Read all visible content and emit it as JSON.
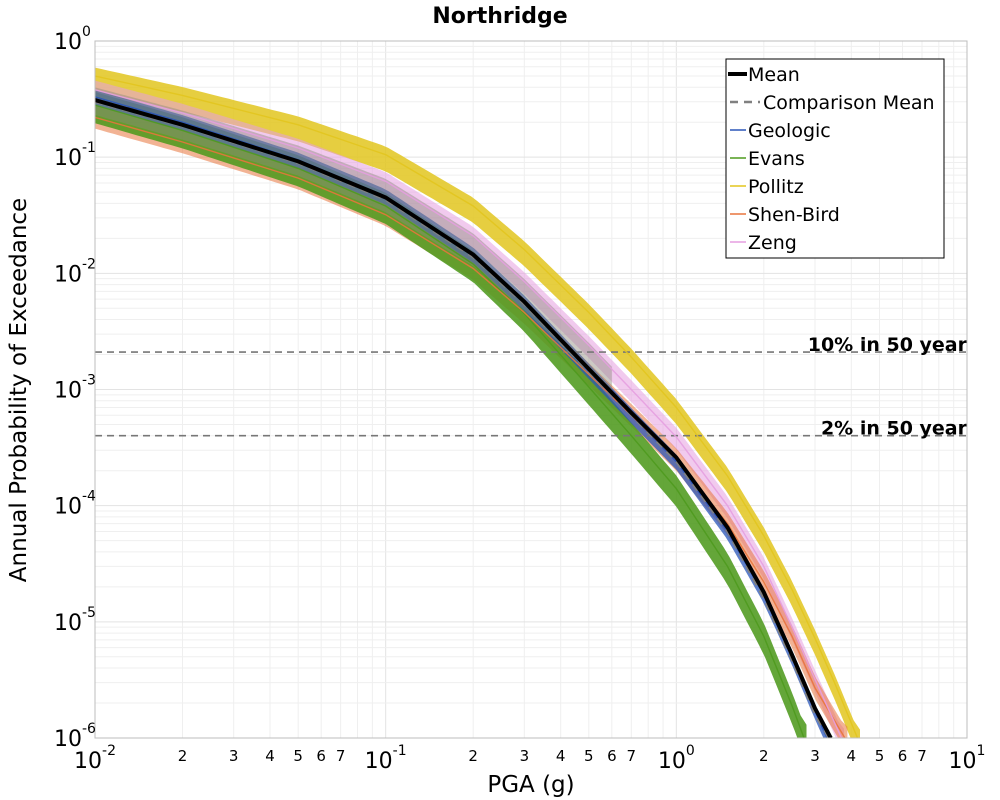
{
  "chart_data": {
    "type": "line",
    "title": "Northridge",
    "xlabel": "PGA (g)",
    "ylabel": "Annual Probability of Exceedance",
    "x_scale": "log",
    "y_scale": "log",
    "xlim": [
      0.01,
      10
    ],
    "ylim": [
      1e-06,
      1
    ],
    "grid": true,
    "legend_position": "top-right",
    "x_major_ticks": [
      {
        "value": 0.01,
        "base": "10",
        "exp": "-2"
      },
      {
        "value": 0.1,
        "base": "10",
        "exp": "-1"
      },
      {
        "value": 1,
        "base": "10",
        "exp": "0"
      },
      {
        "value": 10,
        "base": "10",
        "exp": "1"
      }
    ],
    "x_minor_tick_labels": [
      "2",
      "3",
      "4",
      "5",
      "6",
      "7"
    ],
    "y_major_ticks": [
      {
        "value": 1,
        "base": "10",
        "exp": "0"
      },
      {
        "value": 0.1,
        "base": "10",
        "exp": "-1"
      },
      {
        "value": 0.01,
        "base": "10",
        "exp": "-2"
      },
      {
        "value": 0.001,
        "base": "10",
        "exp": "-3"
      },
      {
        "value": 0.0001,
        "base": "10",
        "exp": "-4"
      },
      {
        "value": 1e-05,
        "base": "10",
        "exp": "-5"
      },
      {
        "value": 1e-06,
        "base": "10",
        "exp": "-6"
      }
    ],
    "series": [
      {
        "name": "Mean",
        "color": "#000000",
        "style": "solid",
        "x": [
          0.01,
          0.02,
          0.05,
          0.1,
          0.2,
          0.3,
          0.5,
          0.7,
          1.0,
          1.5,
          2.0,
          2.5,
          3.0,
          3.4
        ],
        "y": [
          0.31,
          0.19,
          0.092,
          0.045,
          0.0145,
          0.0057,
          0.0015,
          0.00063,
          0.00026,
          6.5e-05,
          1.8e-05,
          5.2e-06,
          1.8e-06,
          1e-06
        ]
      },
      {
        "name": "Comparison Mean",
        "color": "#808080",
        "style": "dashed",
        "x": [
          0.01,
          0.02,
          0.05,
          0.1,
          0.2,
          0.3,
          0.5,
          0.7,
          1.0,
          1.5,
          2.0,
          2.5,
          3.0,
          3.35
        ],
        "y": [
          0.3,
          0.185,
          0.089,
          0.043,
          0.0138,
          0.0054,
          0.00142,
          0.0006,
          0.00024,
          6e-05,
          1.6e-05,
          4.7e-06,
          1.6e-06,
          1e-06
        ]
      },
      {
        "name": "Geologic",
        "color": "#2a55b8",
        "style": "solid",
        "x": [
          0.01,
          0.02,
          0.05,
          0.1,
          0.2,
          0.3,
          0.5,
          0.7,
          1.0,
          1.5,
          2.0,
          2.5,
          3.0,
          3.3
        ],
        "y": [
          0.33,
          0.2,
          0.095,
          0.046,
          0.0145,
          0.0056,
          0.00145,
          0.0006,
          0.00024,
          6e-05,
          1.7e-05,
          5e-06,
          1.7e-06,
          1e-06
        ]
      },
      {
        "name": "Evans",
        "color": "#4e9a1e",
        "style": "solid",
        "x": [
          0.01,
          0.02,
          0.05,
          0.1,
          0.2,
          0.3,
          0.5,
          0.7,
          1.0,
          1.5,
          2.0,
          2.5,
          2.75
        ],
        "y": [
          0.28,
          0.17,
          0.08,
          0.038,
          0.012,
          0.0045,
          0.00105,
          0.0004,
          0.00014,
          3e-05,
          7.5e-06,
          1.9e-06,
          1e-06
        ]
      },
      {
        "name": "Pollitz",
        "color": "#e2c51e",
        "style": "solid",
        "x": [
          0.01,
          0.02,
          0.05,
          0.1,
          0.2,
          0.3,
          0.5,
          0.7,
          1.0,
          1.5,
          2.0,
          2.5,
          3.0,
          3.5,
          4.2
        ],
        "y": [
          0.5,
          0.34,
          0.19,
          0.105,
          0.038,
          0.016,
          0.0046,
          0.0019,
          0.0007,
          0.00018,
          5.5e-05,
          1.9e-05,
          7.2e-06,
          3e-06,
          1e-06
        ]
      },
      {
        "name": "Shen-Bird",
        "color": "#e8743c",
        "style": "solid",
        "x": [
          0.01,
          0.02,
          0.05,
          0.1,
          0.2,
          0.3,
          0.5,
          0.7,
          1.0,
          1.5,
          2.0,
          2.5,
          3.0,
          3.8
        ],
        "y": [
          0.22,
          0.135,
          0.066,
          0.032,
          0.011,
          0.0046,
          0.00135,
          0.0006,
          0.00025,
          7e-05,
          2.2e-05,
          7.5e-06,
          2.7e-06,
          1e-06
        ]
      },
      {
        "name": "Zeng",
        "color": "#e59ee0",
        "style": "solid",
        "x": [
          0.01,
          0.02,
          0.05,
          0.1,
          0.2,
          0.3,
          0.5,
          0.7,
          1.0,
          1.5,
          2.0,
          2.5,
          3.0,
          3.7
        ],
        "y": [
          0.38,
          0.24,
          0.12,
          0.062,
          0.021,
          0.0085,
          0.0024,
          0.001,
          0.00039,
          0.0001,
          3e-05,
          9e-06,
          3.2e-06,
          1e-06
        ]
      }
    ],
    "reference_lines": [
      {
        "label": "10% in 50 year",
        "y": 0.0021
      },
      {
        "label": "2% in 50 year",
        "y": 0.0004
      }
    ]
  }
}
